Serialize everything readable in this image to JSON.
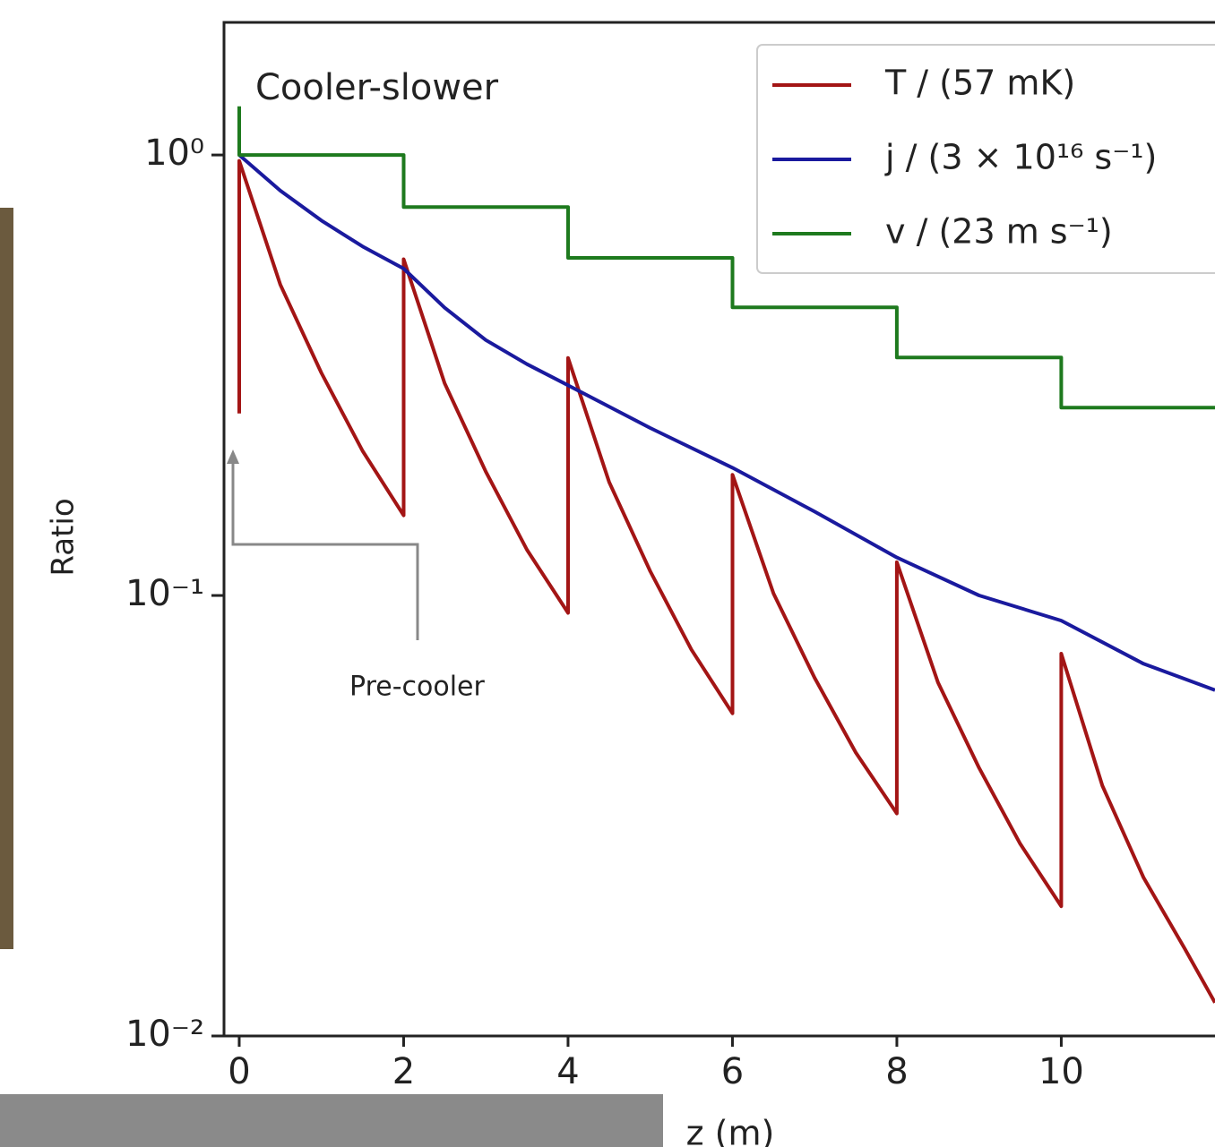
{
  "chart_data": {
    "type": "line",
    "ylabel": "Ratio",
    "xlabel": "z (m)",
    "annotations": [
      "Cooler-slower",
      "Pre-cooler"
    ],
    "log_y": true,
    "xlim": [
      -0.185,
      11.87
    ],
    "ylim": [
      0.01,
      2.0
    ],
    "xticks": [
      0,
      2,
      4,
      6,
      8,
      10
    ],
    "yticks": [
      {
        "value": 1,
        "label": "10⁰"
      },
      {
        "value": 0.1,
        "label": "10⁻¹"
      },
      {
        "value": 0.01,
        "label": "10⁻²"
      }
    ],
    "legend": "upper right",
    "series": [
      {
        "name": "T / (57 mK)",
        "color": "#a31515",
        "x": [
          0,
          0,
          0.5,
          1,
          1.5,
          2,
          2,
          2.5,
          3,
          3.5,
          4,
          4,
          4.5,
          5,
          5.5,
          6,
          6,
          6.5,
          7,
          7.5,
          8,
          8,
          8.5,
          9,
          9.5,
          10,
          10,
          10.5,
          11,
          11.5,
          11.87
        ],
        "values": [
          0.259,
          0.97,
          0.508,
          0.32,
          0.213,
          0.152,
          0.58,
          0.303,
          0.191,
          0.127,
          0.0913,
          0.346,
          0.181,
          0.1135,
          0.0754,
          0.054,
          0.188,
          0.101,
          0.065,
          0.044,
          0.032,
          0.119,
          0.0635,
          0.0406,
          0.0273,
          0.0197,
          0.0738,
          0.037,
          0.0229,
          0.0158,
          0.0119
        ]
      },
      {
        "name": "j / (3 × 10¹⁶ s⁻¹)",
        "color": "#1a1a9e",
        "x": [
          0,
          0.5,
          1,
          1.5,
          2,
          2.5,
          3,
          3.5,
          4,
          5,
          6,
          7,
          8,
          9,
          10,
          11,
          11.87
        ],
        "values": [
          1,
          0.83,
          0.71,
          0.62,
          0.552,
          0.45,
          0.38,
          0.335,
          0.3,
          0.24,
          0.195,
          0.155,
          0.122,
          0.1,
          0.0877,
          0.07,
          0.061
        ]
      },
      {
        "name": "v / (23 m s⁻¹)",
        "color": "#1e7a1e",
        "x": [
          0,
          0,
          2,
          2,
          4,
          4,
          6,
          6,
          8,
          8,
          10,
          10,
          11.87
        ],
        "values": [
          1.29,
          1,
          1,
          0.762,
          0.762,
          0.584,
          0.584,
          0.451,
          0.451,
          0.347,
          0.347,
          0.267,
          0.267
        ]
      }
    ]
  }
}
